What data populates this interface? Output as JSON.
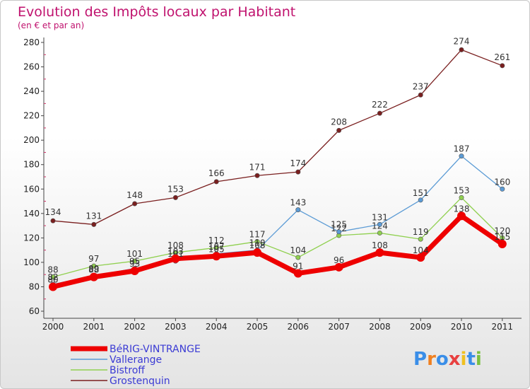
{
  "chart_data": {
    "type": "line",
    "title": "Evolution des Impôts locaux par Habitant",
    "subtitle": "(en € et par an)",
    "categories": [
      "2000",
      "2001",
      "2002",
      "2003",
      "2004",
      "2005",
      "2006",
      "2007",
      "2008",
      "2009",
      "2010",
      "2011"
    ],
    "ylim": [
      60,
      280
    ],
    "yticks": [
      60,
      80,
      100,
      120,
      140,
      160,
      180,
      200,
      220,
      240,
      260,
      280
    ],
    "grid": false,
    "legend_position": "bottom-left",
    "series": [
      {
        "name": "BéRIG-VINTRANGE",
        "color": "#ee0000",
        "values": [
          80,
          88,
          93,
          103,
          105,
          108,
          91,
          96,
          108,
          104,
          138,
          115
        ]
      },
      {
        "name": "Vallerange",
        "color": "#5b9bd5",
        "values": [
          82,
          89,
          95,
          101,
          107,
          110,
          143,
          125,
          131,
          151,
          187,
          160
        ]
      },
      {
        "name": "Bistroff",
        "color": "#90d050",
        "values": [
          88,
          97,
          101,
          108,
          112,
          117,
          104,
          122,
          124,
          119,
          153,
          120
        ]
      },
      {
        "name": "Grostenquin",
        "color": "#7a1f1f",
        "values": [
          134,
          131,
          148,
          153,
          166,
          171,
          174,
          208,
          222,
          237,
          274,
          261
        ]
      }
    ]
  },
  "logo": {
    "text": "Proxiti"
  }
}
